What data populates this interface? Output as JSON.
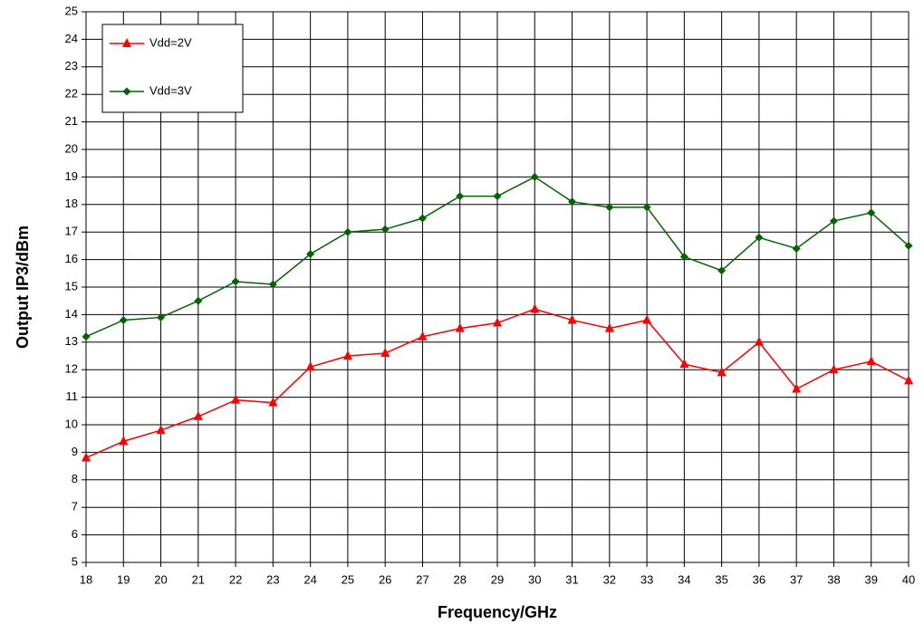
{
  "chart_data": {
    "type": "line",
    "x_label": "Frequency/GHz",
    "y_label": "Output IP3/dBm",
    "x": [
      18,
      19,
      20,
      21,
      22,
      23,
      24,
      25,
      26,
      27,
      28,
      29,
      30,
      31,
      32,
      33,
      34,
      35,
      36,
      37,
      38,
      39,
      40
    ],
    "series": [
      {
        "name": "Vdd=2V",
        "color": "#ff0000",
        "marker": "triangle",
        "values": [
          8.8,
          9.4,
          9.8,
          10.3,
          10.9,
          10.8,
          12.1,
          12.5,
          12.6,
          13.2,
          13.5,
          13.7,
          14.2,
          13.8,
          13.5,
          13.8,
          12.2,
          11.9,
          13.0,
          11.3,
          12.0,
          12.3,
          11.6
        ]
      },
      {
        "name": "Vdd=3V",
        "color": "#006400",
        "marker": "diamond",
        "values": [
          13.2,
          13.8,
          13.9,
          14.5,
          15.2,
          15.1,
          16.2,
          17.0,
          17.1,
          17.5,
          18.3,
          18.3,
          19.0,
          18.1,
          17.9,
          17.9,
          16.1,
          15.6,
          16.8,
          16.4,
          17.4,
          17.7,
          16.5
        ]
      }
    ],
    "xlim": [
      18,
      40
    ],
    "xticks": [
      18,
      19,
      20,
      21,
      22,
      23,
      24,
      25,
      26,
      27,
      28,
      29,
      30,
      31,
      32,
      33,
      34,
      35,
      36,
      37,
      38,
      39,
      40
    ],
    "ylim": [
      5,
      25
    ],
    "yticks": [
      5,
      6,
      7,
      8,
      9,
      10,
      11,
      12,
      13,
      14,
      15,
      16,
      17,
      18,
      19,
      20,
      21,
      22,
      23,
      24,
      25
    ],
    "grid": true,
    "legend": "upper left"
  }
}
